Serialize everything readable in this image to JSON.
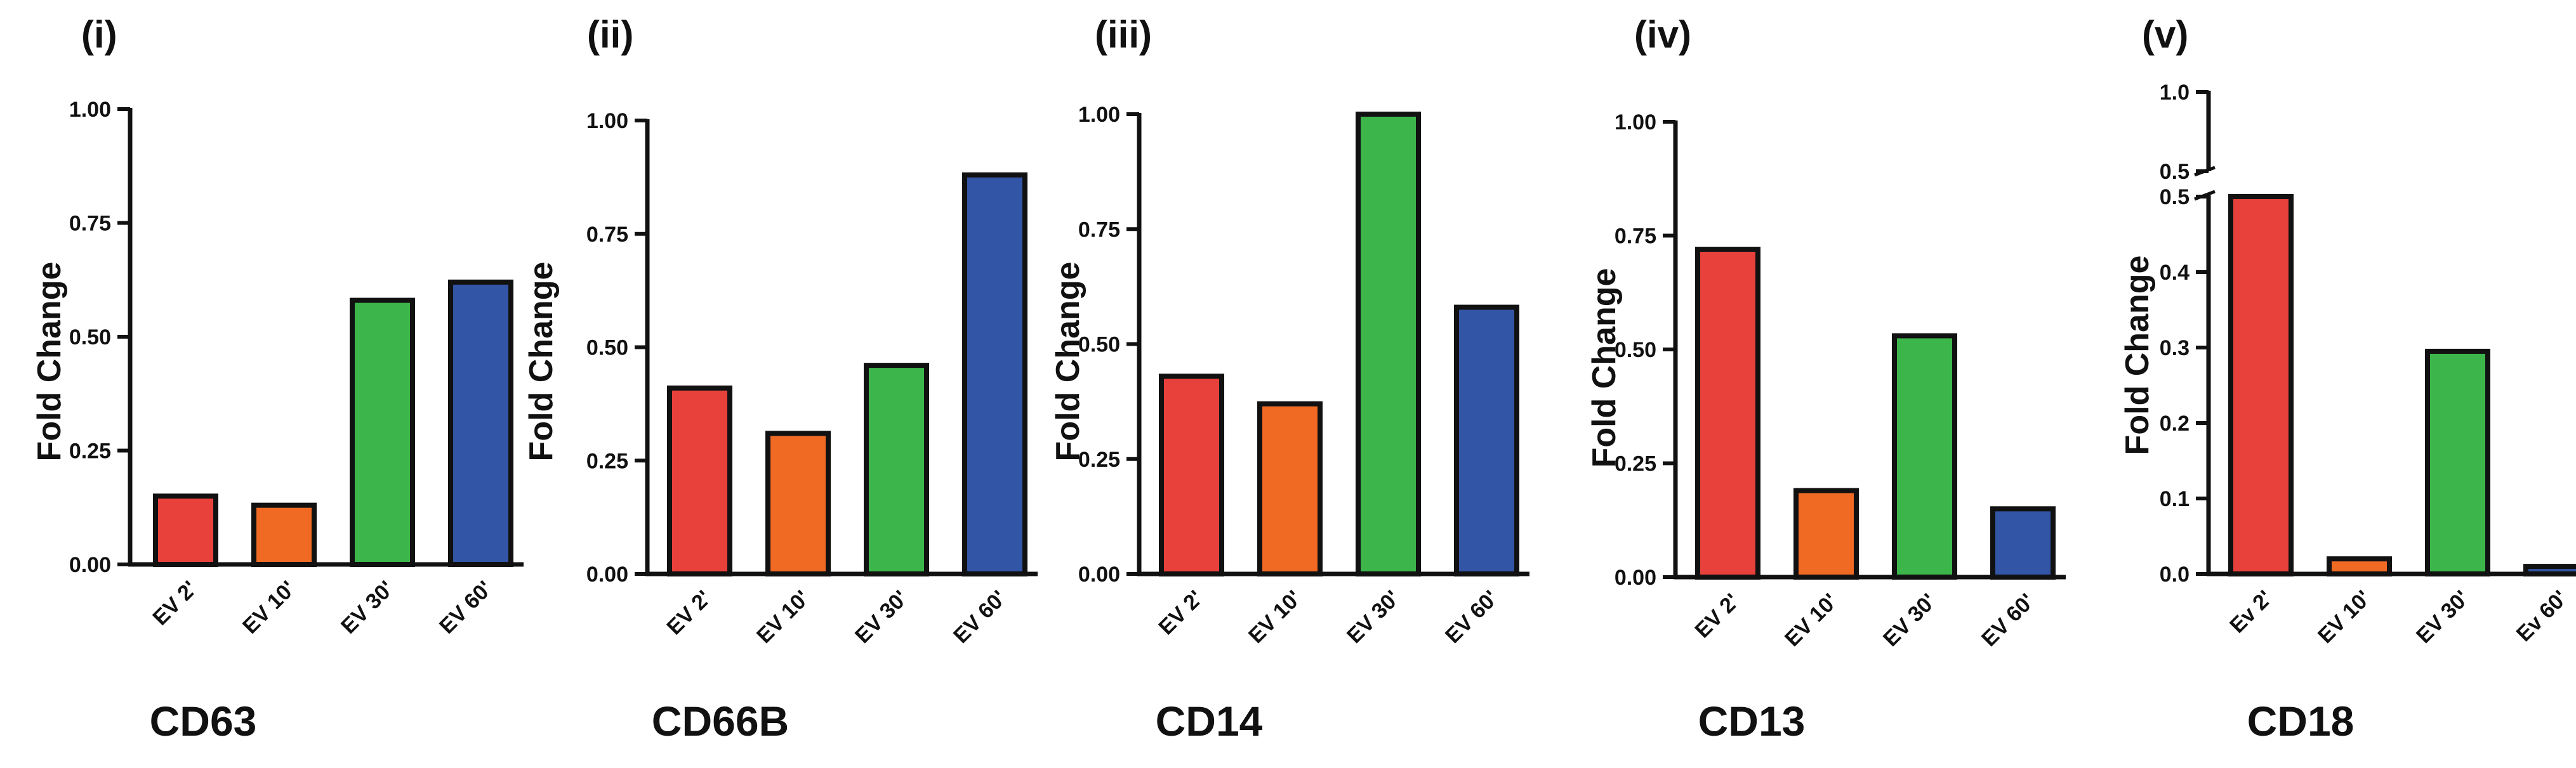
{
  "colors": {
    "ev2": "#e8413c",
    "ev10": "#f06a24",
    "ev30": "#3cb54a",
    "ev60": "#3355a5",
    "axis": "#111111"
  },
  "chart_data": [
    {
      "type": "bar",
      "panel": "(i)",
      "title": "CD63",
      "ylabel": "Fold Change",
      "xlabel": "",
      "categories": [
        "EV 2'",
        "EV 10'",
        "EV 30'",
        "EV 60'"
      ],
      "values": [
        0.15,
        0.13,
        0.58,
        0.62
      ],
      "ylim": [
        0,
        1.0
      ],
      "yticks": [
        0.0,
        0.25,
        0.5,
        0.75,
        1.0
      ],
      "ytick_labels": [
        "0.00",
        "0.25",
        "0.50",
        "0.75",
        "1.00"
      ]
    },
    {
      "type": "bar",
      "panel": "(ii)",
      "title": "CD66B",
      "ylabel": "Fold Change",
      "xlabel": "",
      "categories": [
        "EV 2'",
        "EV 10'",
        "EV 30'",
        "EV 60'"
      ],
      "values": [
        0.41,
        0.31,
        0.46,
        0.88
      ],
      "ylim": [
        0,
        1.0
      ],
      "yticks": [
        0.0,
        0.25,
        0.5,
        0.75,
        1.0
      ],
      "ytick_labels": [
        "0.00",
        "0.25",
        "0.50",
        "0.75",
        "1.00"
      ]
    },
    {
      "type": "bar",
      "panel": "(iii)",
      "title": "CD14",
      "ylabel": "Fold Change",
      "xlabel": "",
      "categories": [
        "EV 2'",
        "EV 10'",
        "EV 30'",
        "EV 60'"
      ],
      "values": [
        0.43,
        0.37,
        1.0,
        0.58
      ],
      "ylim": [
        0,
        1.0
      ],
      "yticks": [
        0.0,
        0.25,
        0.5,
        0.75,
        1.0
      ],
      "ytick_labels": [
        "0.00",
        "0.25",
        "0.50",
        "0.75",
        "1.00"
      ]
    },
    {
      "type": "bar",
      "panel": "(iv)",
      "title": "CD13",
      "ylabel": "Fold Change",
      "xlabel": "",
      "categories": [
        "EV 2'",
        "EV 10'",
        "EV 30'",
        "EV 60'"
      ],
      "values": [
        0.72,
        0.19,
        0.53,
        0.15
      ],
      "ylim": [
        0,
        1.0
      ],
      "yticks": [
        0.0,
        0.25,
        0.5,
        0.75,
        1.0
      ],
      "ytick_labels": [
        "0.00",
        "0.25",
        "0.50",
        "0.75",
        "1.00"
      ]
    },
    {
      "type": "bar",
      "panel": "(v)",
      "title": "CD18",
      "ylabel": "Fold Change",
      "xlabel": "",
      "categories": [
        "Ev 2'",
        "EV 10'",
        "EV 30'",
        "Ev 60'"
      ],
      "values": [
        0.5,
        0.02,
        0.295,
        0.01
      ],
      "ylim": [
        0,
        1.0
      ],
      "axis_break": [
        0.5,
        0.5
      ],
      "lower_yticks": [
        0.0,
        0.1,
        0.2,
        0.3,
        0.4,
        0.5
      ],
      "lower_ytick_labels": [
        "0.0",
        "0.1",
        "0.2",
        "0.3",
        "0.4",
        "0.5"
      ],
      "upper_yticks": [
        0.5,
        1.0
      ],
      "upper_ytick_labels": [
        "0.5",
        "1.0"
      ]
    }
  ]
}
